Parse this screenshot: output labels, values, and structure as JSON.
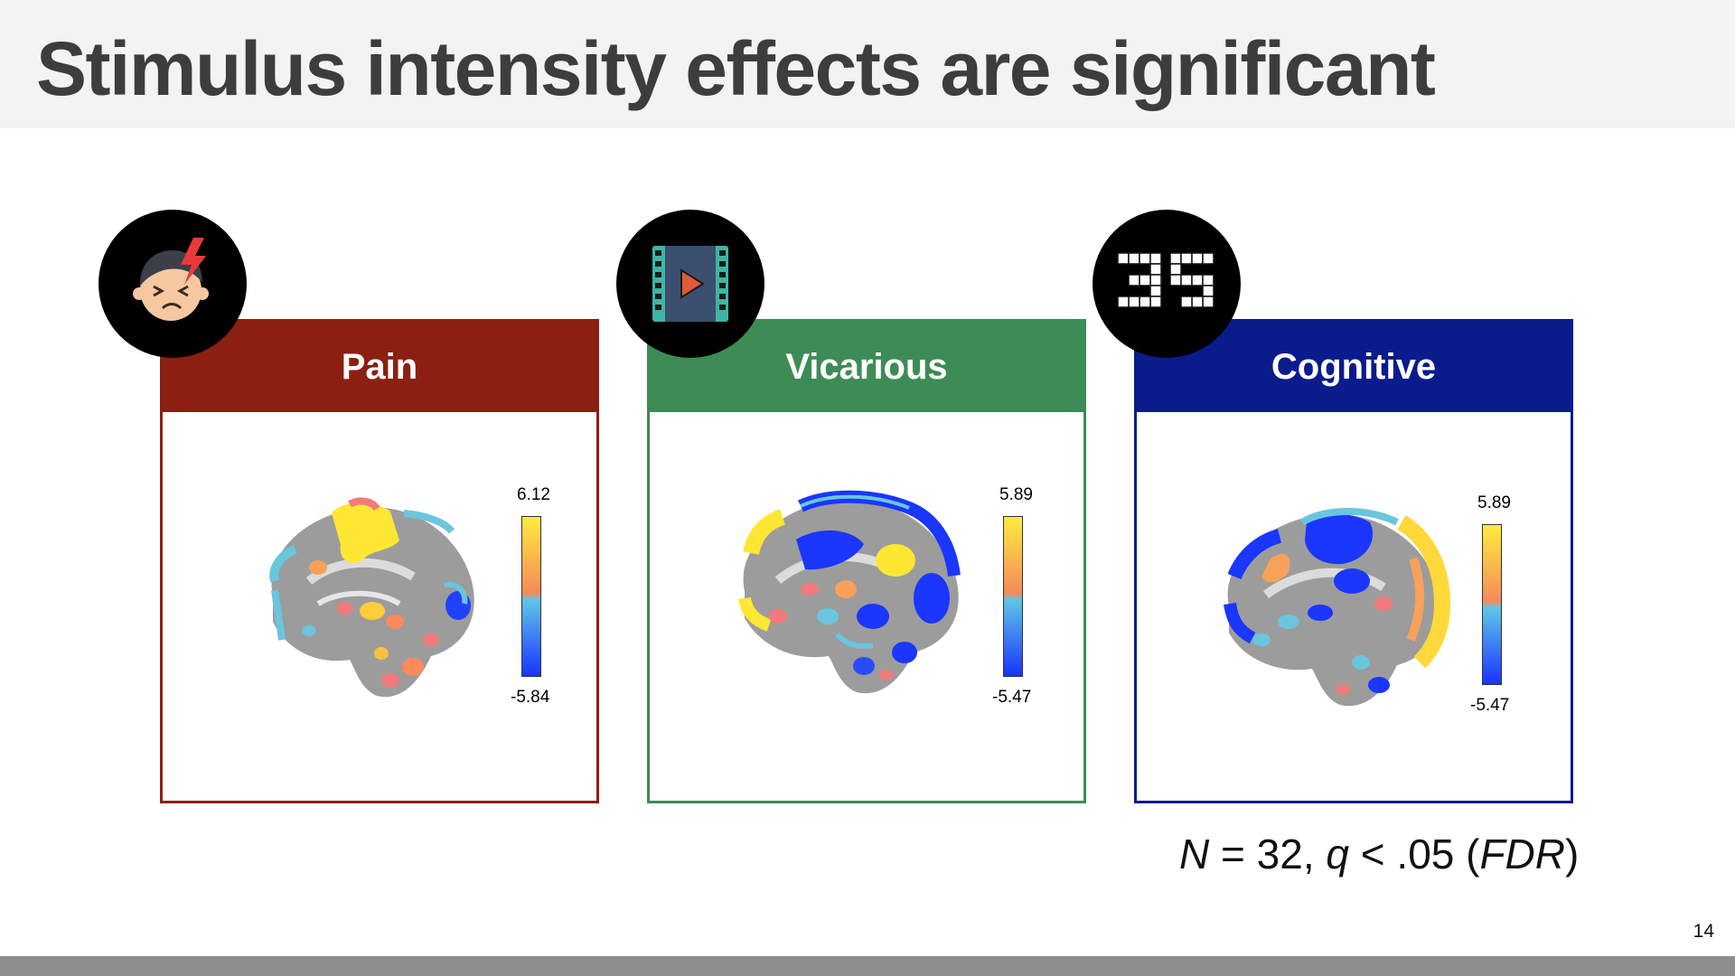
{
  "slide": {
    "title": "Stimulus intensity effects are significant",
    "page_number": "14"
  },
  "panels": [
    {
      "label": "Pain",
      "color": "#8b2012",
      "icon": "pain-face-icon",
      "colorbar": {
        "max": "6.12",
        "min": "-5.84"
      }
    },
    {
      "label": "Vicarious",
      "color": "#3e8c55",
      "icon": "video-play-icon",
      "colorbar": {
        "max": "5.89",
        "min": "-5.47"
      }
    },
    {
      "label": "Cognitive",
      "color": "#0a1b8c",
      "icon": "rotated-digits-icon",
      "colorbar": {
        "max": "5.89",
        "min": "-5.47"
      }
    }
  ],
  "stats": {
    "n_label": "N",
    "n_rest": " = 32, ",
    "q_label": "q",
    "q_rest": " < .05 (",
    "fdr_label": "FDR",
    "close": ")"
  },
  "colors": {
    "title_bar": "#f3f3f3",
    "footer_bar": "#8e8e8e",
    "positive_map": "#ffe733",
    "negative_map": "#1a3cff"
  }
}
